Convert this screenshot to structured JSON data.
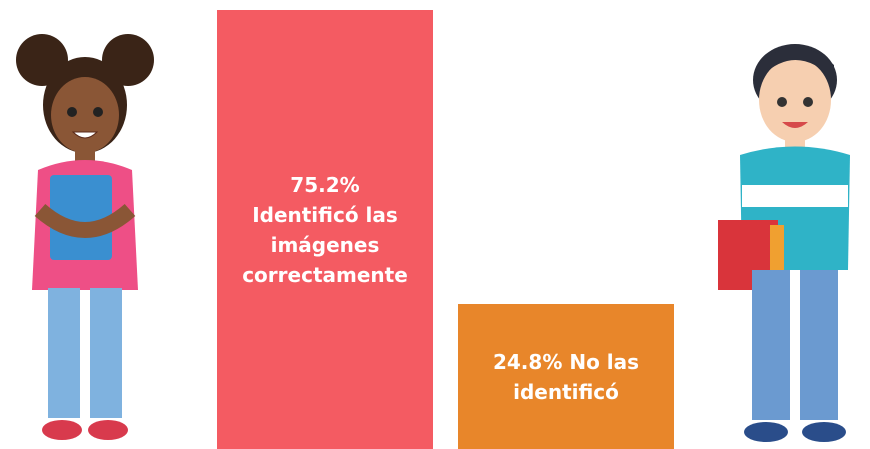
{
  "chart_data": {
    "type": "bar",
    "categories": [
      "Identificó las imágenes correctamente",
      "No las identificó"
    ],
    "values": [
      75.2,
      24.8
    ],
    "value_labels": [
      "75.2%",
      "24.8%"
    ],
    "colors": [
      "#f45b62",
      "#e8862a"
    ]
  }
}
